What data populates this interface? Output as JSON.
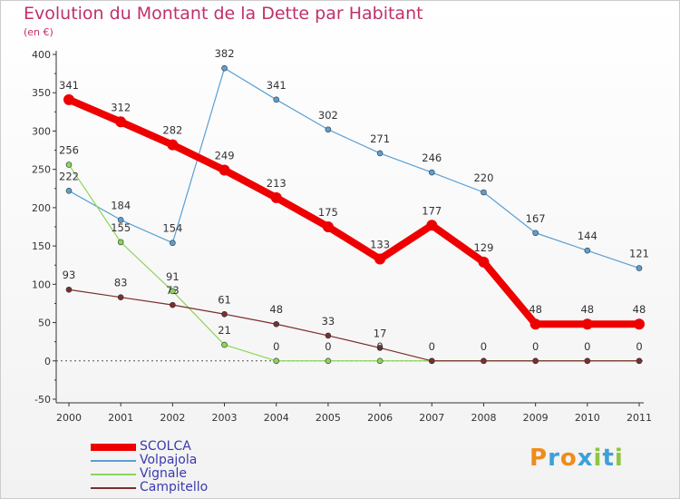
{
  "header": {
    "title": "Evolution du Montant de la Dette par Habitant",
    "subtitle": "(en €)"
  },
  "logo": {
    "text": "Proxiti",
    "letters": [
      "P",
      "r",
      "o",
      "x",
      "i",
      "t",
      "i"
    ],
    "colors": [
      "#f08c1c",
      "#3fa0d8",
      "#f08c1c",
      "#3fa0d8",
      "#8cc63f",
      "#3fa0d8",
      "#8cc63f"
    ]
  },
  "chart_data": {
    "type": "line",
    "x": [
      "2000",
      "2001",
      "2002",
      "2003",
      "2004",
      "2005",
      "2006",
      "2007",
      "2008",
      "2009",
      "2010",
      "2011"
    ],
    "ylim": [
      -50,
      400
    ],
    "yticks": [
      "-50",
      "0",
      "50",
      "100",
      "150",
      "200",
      "250",
      "300",
      "350",
      "400"
    ],
    "grid": false,
    "legend_position": "bottom-left",
    "series": [
      {
        "name": "SCOLCA",
        "color": "#ee0000",
        "values": [
          341,
          312,
          282,
          249,
          213,
          175,
          133,
          177,
          129,
          48,
          48,
          48
        ],
        "labels": [
          "341",
          "312",
          "282",
          "249",
          "213",
          "175",
          "133",
          "177",
          "129",
          "48",
          "48",
          "48"
        ]
      },
      {
        "name": "Volpajola",
        "color": "#5a9fd4",
        "values": [
          222,
          184,
          154,
          382,
          341,
          302,
          271,
          246,
          220,
          167,
          144,
          121
        ],
        "labels": [
          "222",
          "184",
          "154",
          "382",
          "341",
          "302",
          "271",
          "246",
          "220",
          "167",
          "144",
          "121"
        ]
      },
      {
        "name": "Vignale",
        "color": "#8cd65a",
        "values": [
          256,
          155,
          91,
          21,
          0,
          0,
          0,
          0,
          0,
          0,
          0,
          0
        ],
        "labels": [
          "256",
          "155",
          "91",
          "21",
          "0",
          "0",
          "0",
          "0",
          "0",
          "0",
          "0",
          "0"
        ]
      },
      {
        "name": "Campitello",
        "color": "#7a2e2e",
        "values": [
          93,
          83,
          73,
          61,
          48,
          33,
          17,
          0,
          0,
          0,
          0,
          0
        ],
        "labels": [
          "93",
          "83",
          "73",
          "61",
          "48",
          "33",
          "17",
          "",
          "",
          "",
          "",
          ""
        ]
      }
    ]
  }
}
